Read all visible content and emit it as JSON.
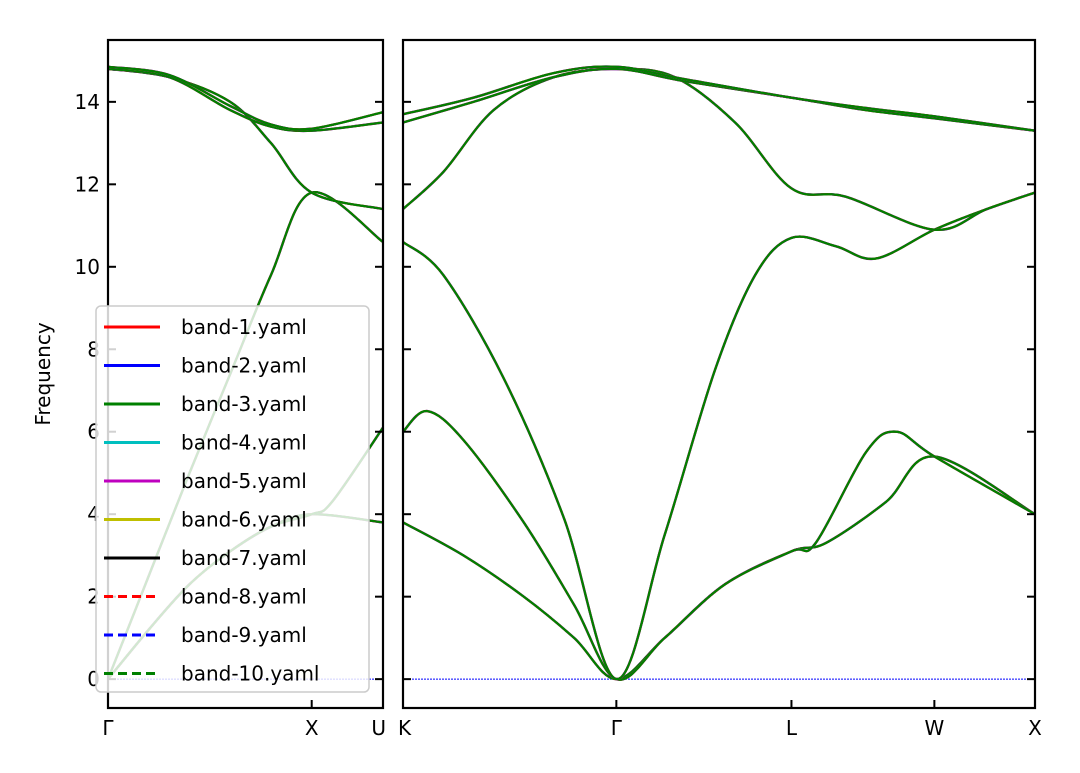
{
  "chart_data": {
    "type": "line",
    "ylabel": "Frequency",
    "ylim": [
      -0.7,
      15.5
    ],
    "yticks": [
      0,
      2,
      4,
      6,
      8,
      10,
      12,
      14
    ],
    "grid": false,
    "legend_position": "lower-left",
    "legend": [
      {
        "name": "band-1.yaml",
        "color": "#ff0000",
        "style": "solid"
      },
      {
        "name": "band-2.yaml",
        "color": "#0000ff",
        "style": "solid"
      },
      {
        "name": "band-3.yaml",
        "color": "#008000",
        "style": "solid"
      },
      {
        "name": "band-4.yaml",
        "color": "#00bfbf",
        "style": "solid"
      },
      {
        "name": "band-5.yaml",
        "color": "#bf00bf",
        "style": "solid"
      },
      {
        "name": "band-6.yaml",
        "color": "#bfbf00",
        "style": "solid"
      },
      {
        "name": "band-7.yaml",
        "color": "#000000",
        "style": "solid"
      },
      {
        "name": "band-8.yaml",
        "color": "#ff0000",
        "style": "dashed"
      },
      {
        "name": "band-9.yaml",
        "color": "#0000ff",
        "style": "dashed"
      },
      {
        "name": "band-10.yaml",
        "color": "#008000",
        "style": "dashed"
      }
    ],
    "panels": [
      {
        "id": "gamma-x-u",
        "xticks": [
          {
            "pos": 0,
            "label": "Γ"
          },
          {
            "pos": 1,
            "label": "X"
          },
          {
            "pos": 1.35,
            "label": "U"
          }
        ],
        "xlim": [
          0,
          1.35
        ],
        "branches": [
          {
            "name": "acoustic-1",
            "points": [
              [
                0,
                0
              ],
              [
                0.2,
                1.2
              ],
              [
                0.4,
                2.3
              ],
              [
                0.6,
                3.1
              ],
              [
                0.8,
                3.7
              ],
              [
                1.0,
                4.0
              ],
              [
                1.35,
                3.8
              ]
            ]
          },
          {
            "name": "acoustic-2",
            "points": [
              [
                0,
                0
              ],
              [
                0.2,
                1.2
              ],
              [
                0.4,
                2.3
              ],
              [
                0.6,
                3.1
              ],
              [
                0.8,
                3.7
              ],
              [
                1.0,
                4.0
              ],
              [
                1.1,
                4.3
              ],
              [
                1.35,
                6.1
              ]
            ]
          },
          {
            "name": "acoustic-3",
            "points": [
              [
                0,
                0
              ],
              [
                0.2,
                2.5
              ],
              [
                0.4,
                5.0
              ],
              [
                0.6,
                7.4
              ],
              [
                0.8,
                9.8
              ],
              [
                1.0,
                11.8
              ],
              [
                1.35,
                10.6
              ]
            ]
          },
          {
            "name": "optical-4",
            "points": [
              [
                0,
                14.8
              ],
              [
                0.3,
                14.6
              ],
              [
                0.6,
                14.0
              ],
              [
                0.8,
                13.0
              ],
              [
                1.0,
                11.8
              ],
              [
                1.35,
                11.4
              ]
            ]
          },
          {
            "name": "optical-5",
            "points": [
              [
                0,
                14.8
              ],
              [
                0.3,
                14.6
              ],
              [
                0.6,
                13.8
              ],
              [
                0.8,
                13.4
              ],
              [
                1.0,
                13.3
              ],
              [
                1.35,
                13.5
              ]
            ]
          },
          {
            "name": "optical-6",
            "points": [
              [
                0,
                14.85
              ],
              [
                0.3,
                14.65
              ],
              [
                0.6,
                13.9
              ],
              [
                0.8,
                13.45
              ],
              [
                1.0,
                13.35
              ],
              [
                1.35,
                13.75
              ]
            ]
          }
        ]
      },
      {
        "id": "k-gamma-l-w-x",
        "xticks": [
          {
            "pos": 0,
            "label": "K"
          },
          {
            "pos": 1.06,
            "label": "Γ"
          },
          {
            "pos": 1.93,
            "label": "L"
          },
          {
            "pos": 2.64,
            "label": "W"
          },
          {
            "pos": 3.14,
            "label": "X"
          }
        ],
        "xlim": [
          0,
          3.14
        ],
        "branches": [
          {
            "name": "acoustic-1",
            "points": [
              [
                0,
                3.8
              ],
              [
                0.3,
                3.0
              ],
              [
                0.6,
                2.0
              ],
              [
                0.85,
                1.0
              ],
              [
                1.06,
                0
              ],
              [
                1.3,
                1.0
              ],
              [
                1.6,
                2.3
              ],
              [
                1.93,
                3.1
              ],
              [
                2.1,
                3.3
              ],
              [
                2.4,
                4.3
              ],
              [
                2.64,
                5.4
              ],
              [
                3.14,
                4.0
              ]
            ]
          },
          {
            "name": "acoustic-2",
            "points": [
              [
                0,
                6.0
              ],
              [
                0.12,
                6.5
              ],
              [
                0.3,
                5.8
              ],
              [
                0.6,
                3.8
              ],
              [
                0.85,
                1.8
              ],
              [
                1.06,
                0
              ],
              [
                1.3,
                1.0
              ],
              [
                1.6,
                2.3
              ],
              [
                1.93,
                3.1
              ],
              [
                2.05,
                3.3
              ],
              [
                2.3,
                5.5
              ],
              [
                2.45,
                6.0
              ],
              [
                2.64,
                5.4
              ],
              [
                3.14,
                4.0
              ]
            ]
          },
          {
            "name": "acoustic-3",
            "points": [
              [
                0,
                10.6
              ],
              [
                0.2,
                9.8
              ],
              [
                0.5,
                7.3
              ],
              [
                0.8,
                3.9
              ],
              [
                1.06,
                0
              ],
              [
                1.3,
                3.5
              ],
              [
                1.55,
                7.5
              ],
              [
                1.75,
                9.8
              ],
              [
                1.93,
                10.7
              ],
              [
                2.15,
                10.5
              ],
              [
                2.35,
                10.2
              ],
              [
                2.64,
                10.9
              ],
              [
                2.9,
                11.4
              ],
              [
                3.14,
                11.8
              ]
            ]
          },
          {
            "name": "optical-4",
            "points": [
              [
                0,
                11.4
              ],
              [
                0.2,
                12.3
              ],
              [
                0.45,
                13.8
              ],
              [
                0.75,
                14.6
              ],
              [
                1.06,
                14.8
              ],
              [
                1.35,
                14.6
              ],
              [
                1.65,
                13.5
              ],
              [
                1.93,
                11.9
              ],
              [
                2.2,
                11.7
              ],
              [
                2.64,
                10.9
              ],
              [
                2.9,
                11.4
              ],
              [
                3.14,
                11.8
              ]
            ]
          },
          {
            "name": "optical-5",
            "points": [
              [
                0,
                13.5
              ],
              [
                0.35,
                14.0
              ],
              [
                0.75,
                14.6
              ],
              [
                1.06,
                14.8
              ],
              [
                1.4,
                14.5
              ],
              [
                1.93,
                14.1
              ],
              [
                2.3,
                13.8
              ],
              [
                2.64,
                13.6
              ],
              [
                3.14,
                13.3
              ]
            ]
          },
          {
            "name": "optical-6",
            "points": [
              [
                0,
                13.7
              ],
              [
                0.35,
                14.1
              ],
              [
                0.75,
                14.7
              ],
              [
                1.06,
                14.85
              ],
              [
                1.4,
                14.55
              ],
              [
                1.93,
                14.1
              ],
              [
                2.3,
                13.85
              ],
              [
                2.64,
                13.65
              ],
              [
                3.14,
                13.3
              ]
            ]
          }
        ]
      }
    ]
  }
}
